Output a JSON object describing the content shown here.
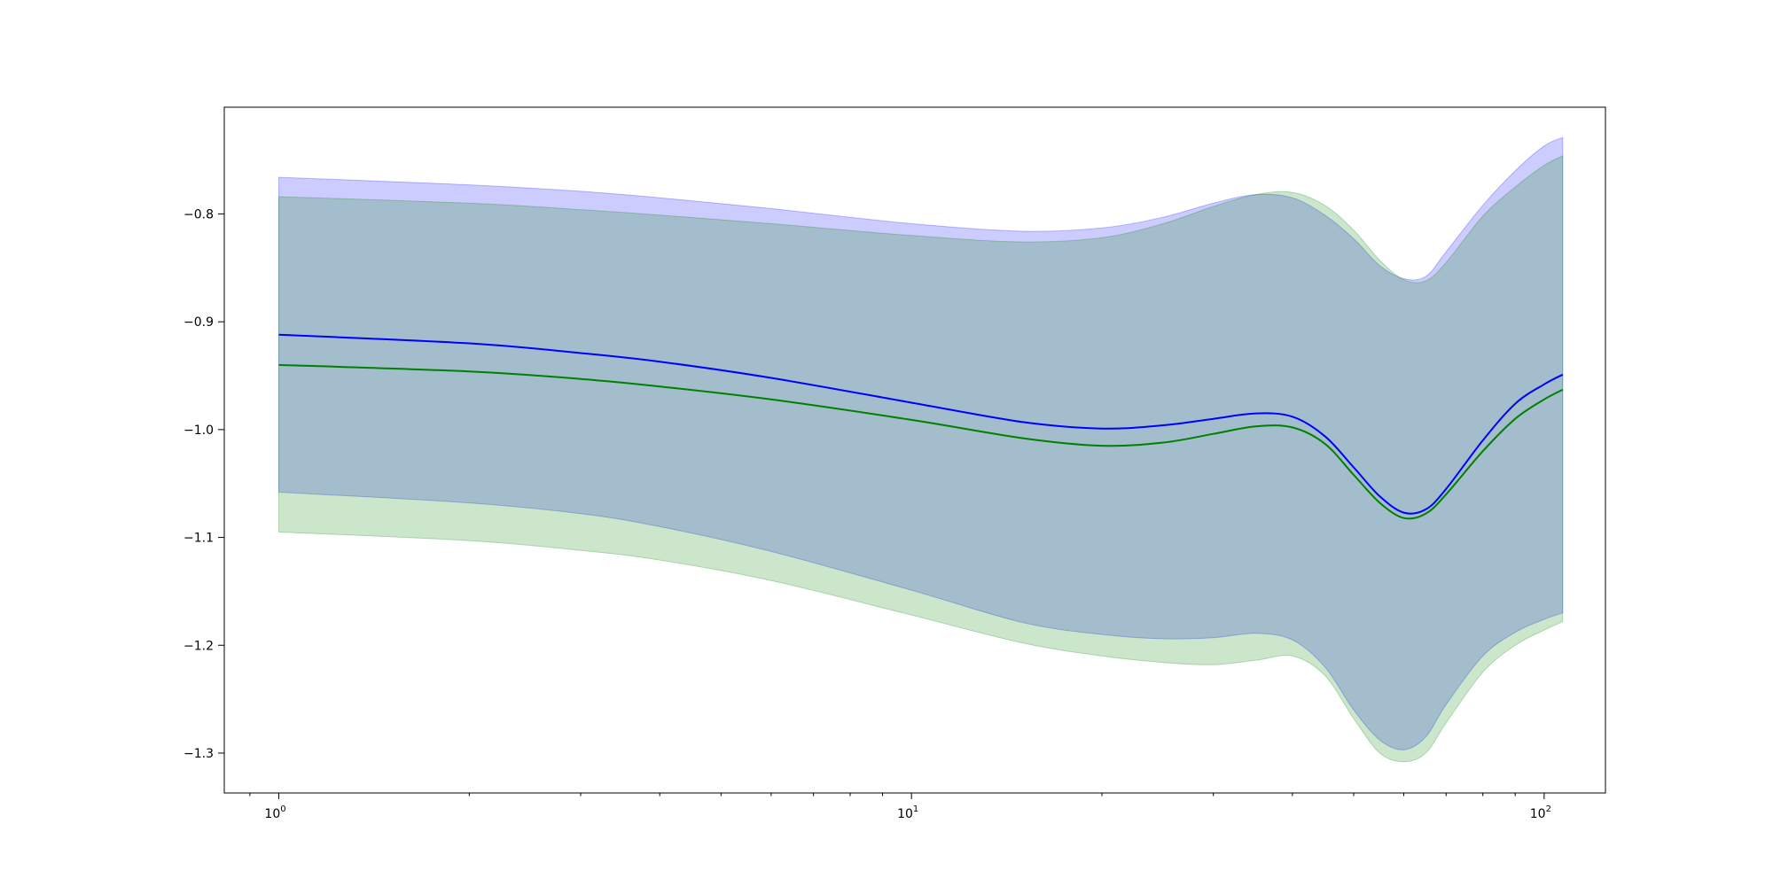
{
  "chart_data": {
    "type": "line",
    "title": "",
    "xlabel": "",
    "ylabel": "",
    "x_scale": "log",
    "xlim": [
      0.82,
      125
    ],
    "ylim": [
      -1.337,
      -0.701
    ],
    "grid": false,
    "legend": "none",
    "x_ticks": [
      {
        "value": 1,
        "base": "10",
        "exp": "0"
      },
      {
        "value": 10,
        "base": "10",
        "exp": "1"
      },
      {
        "value": 100,
        "base": "10",
        "exp": "2"
      }
    ],
    "y_ticks": [
      {
        "value": -0.8,
        "label": "−0.8"
      },
      {
        "value": -0.9,
        "label": "−0.9"
      },
      {
        "value": -1.0,
        "label": "−1.0"
      },
      {
        "value": -1.1,
        "label": "−1.1"
      },
      {
        "value": -1.2,
        "label": "−1.2"
      },
      {
        "value": -1.3,
        "label": "−1.3"
      }
    ],
    "series": [
      {
        "color": "#0000ff",
        "band_color": "#0000ff",
        "x": [
          1,
          2,
          3,
          4,
          6,
          10,
          15,
          20,
          25,
          30,
          35,
          40,
          45,
          50,
          55,
          60,
          65,
          70,
          80,
          90,
          100,
          107
        ],
        "mean": [
          -0.912,
          -0.92,
          -0.929,
          -0.937,
          -0.952,
          -0.975,
          -0.993,
          -0.999,
          -0.996,
          -0.99,
          -0.985,
          -0.988,
          -1.006,
          -1.035,
          -1.062,
          -1.077,
          -1.074,
          -1.055,
          -1.01,
          -0.976,
          -0.958,
          -0.949
        ],
        "upper": [
          -0.766,
          -0.773,
          -0.779,
          -0.785,
          -0.795,
          -0.809,
          -0.816,
          -0.813,
          -0.803,
          -0.79,
          -0.782,
          -0.785,
          -0.801,
          -0.823,
          -0.848,
          -0.86,
          -0.858,
          -0.835,
          -0.792,
          -0.76,
          -0.737,
          -0.729
        ],
        "lower": [
          -1.058,
          -1.068,
          -1.078,
          -1.09,
          -1.113,
          -1.149,
          -1.179,
          -1.19,
          -1.194,
          -1.193,
          -1.189,
          -1.195,
          -1.22,
          -1.26,
          -1.288,
          -1.297,
          -1.285,
          -1.255,
          -1.21,
          -1.188,
          -1.176,
          -1.17
        ]
      },
      {
        "color": "#008000",
        "band_color": "#008000",
        "x": [
          1,
          2,
          3,
          4,
          6,
          10,
          15,
          20,
          25,
          30,
          35,
          40,
          45,
          50,
          55,
          60,
          65,
          70,
          80,
          90,
          100,
          107
        ],
        "mean": [
          -0.94,
          -0.946,
          -0.953,
          -0.96,
          -0.972,
          -0.991,
          -1.008,
          -1.015,
          -1.012,
          -1.004,
          -0.997,
          -0.998,
          -1.013,
          -1.042,
          -1.068,
          -1.082,
          -1.078,
          -1.06,
          -1.02,
          -0.99,
          -0.972,
          -0.963
        ],
        "upper": [
          -0.784,
          -0.79,
          -0.796,
          -0.801,
          -0.809,
          -0.82,
          -0.826,
          -0.822,
          -0.809,
          -0.793,
          -0.782,
          -0.78,
          -0.792,
          -0.815,
          -0.843,
          -0.861,
          -0.862,
          -0.845,
          -0.802,
          -0.775,
          -0.755,
          -0.746
        ],
        "lower": [
          -1.095,
          -1.103,
          -1.112,
          -1.121,
          -1.14,
          -1.172,
          -1.198,
          -1.21,
          -1.216,
          -1.218,
          -1.214,
          -1.21,
          -1.228,
          -1.268,
          -1.3,
          -1.308,
          -1.3,
          -1.272,
          -1.225,
          -1.2,
          -1.186,
          -1.178
        ]
      }
    ]
  }
}
